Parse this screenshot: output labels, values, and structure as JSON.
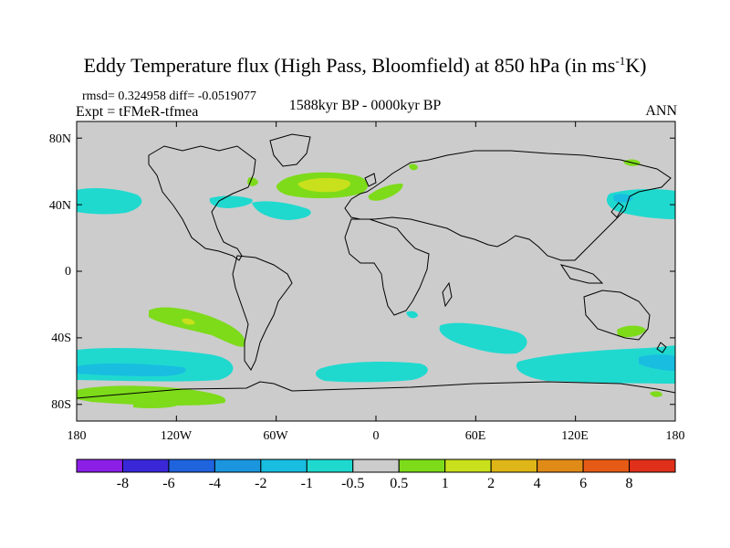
{
  "title": {
    "main": "Eddy Temperature flux (High Pass, Bloomfield) at 850 hPa (in ms",
    "superscript": "-1",
    "unit_suffix": "K)"
  },
  "stats": "rmsd= 0.324958 diff= -0.0519077",
  "expt": "Expt = tFMeR-tfmea",
  "period": "1588kyr BP - 0000kyr BP",
  "season": "ANN",
  "axes": {
    "lat_ticks": [
      "80N",
      "40N",
      "0",
      "40S",
      "80S"
    ],
    "lon_ticks": [
      "180",
      "120W",
      "60W",
      "0",
      "60E",
      "120E",
      "180"
    ]
  },
  "colorbar": {
    "labels": [
      "-8",
      "-6",
      "-4",
      "-2",
      "-1",
      "-0.5",
      "0.5",
      "1",
      "2",
      "4",
      "6",
      "8"
    ],
    "colors": [
      "#8c1fe6",
      "#3a28d8",
      "#1f63dd",
      "#1b95dd",
      "#18bde0",
      "#1fd9cf",
      "#cccccc",
      "#7ddb1a",
      "#c9e01c",
      "#dfb617",
      "#e08a17",
      "#e55b15",
      "#e0301a"
    ]
  },
  "colors": {
    "land_sea_background": "#cccccc",
    "coast": "#000000",
    "positive_light": "#7ddb1a",
    "positive_mid": "#c9e01c",
    "negative_light": "#1fd9cf",
    "negative_mid": "#18bde0"
  }
}
